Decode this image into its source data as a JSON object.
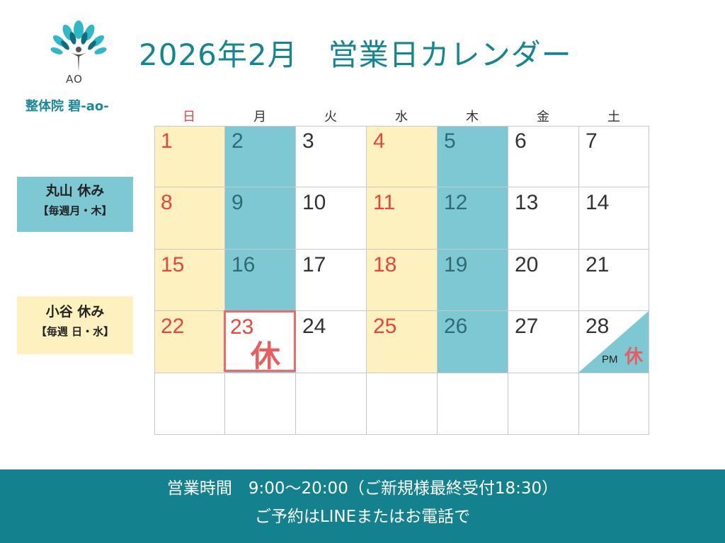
{
  "logo": {
    "text": "AO"
  },
  "clinic_name": "整体院 碧-ao-",
  "title": "2026年2月　営業日カレンダー",
  "legend": {
    "maruyama": {
      "line1": "丸山 休み",
      "line2": "【毎週月・木】",
      "color": "#7ec8d4"
    },
    "kotani": {
      "line1": "小谷 休み",
      "line2": "【毎週 日・水】",
      "color": "#fdf1bf"
    }
  },
  "weekdays": [
    "日",
    "月",
    "火",
    "水",
    "木",
    "金",
    "土"
  ],
  "weeks": [
    [
      "1",
      "2",
      "3",
      "4",
      "5",
      "6",
      "7"
    ],
    [
      "8",
      "9",
      "10",
      "11",
      "12",
      "13",
      "14"
    ],
    [
      "15",
      "16",
      "17",
      "18",
      "19",
      "20",
      "21"
    ],
    [
      "22",
      "23",
      "24",
      "25",
      "26",
      "27",
      "28"
    ],
    [
      "",
      "",
      "",
      "",
      "",
      "",
      ""
    ]
  ],
  "special": {
    "closed_label": "休",
    "pm_label": "PM",
    "pm_kyu": "休"
  },
  "footer": {
    "line1": "営業時間　9:00〜20:00（ご新規様最終受付18:30）",
    "line2": "ご予約はLINEまたはお電話で"
  },
  "colors": {
    "accent": "#13878f",
    "holiday_red": "#e8453c",
    "closed_red": "#ec6a6a"
  }
}
